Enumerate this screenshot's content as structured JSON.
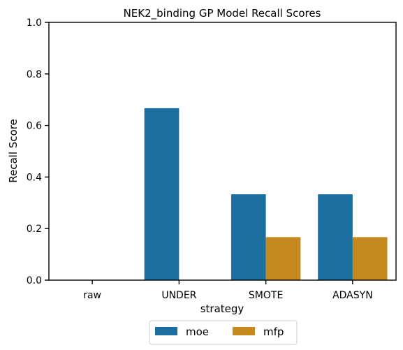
{
  "chart_data": {
    "type": "bar",
    "title": "NEK2_binding GP Model Recall Scores",
    "xlabel": "strategy",
    "ylabel": "Recall Score",
    "categories": [
      "raw",
      "UNDER",
      "SMOTE",
      "ADASYN"
    ],
    "series": [
      {
        "name": "moe",
        "color": "#1a6fa0",
        "values": [
          0.0,
          0.667,
          0.333,
          0.333
        ]
      },
      {
        "name": "mfp",
        "color": "#c5891f",
        "values": [
          0.0,
          0.0,
          0.167,
          0.167
        ]
      }
    ],
    "ylim": [
      0,
      1.0
    ],
    "yticks": [
      "0.0",
      "0.2",
      "0.4",
      "0.6",
      "0.8",
      "1.0"
    ],
    "grid": false,
    "legend_placement": "bottom-center"
  }
}
